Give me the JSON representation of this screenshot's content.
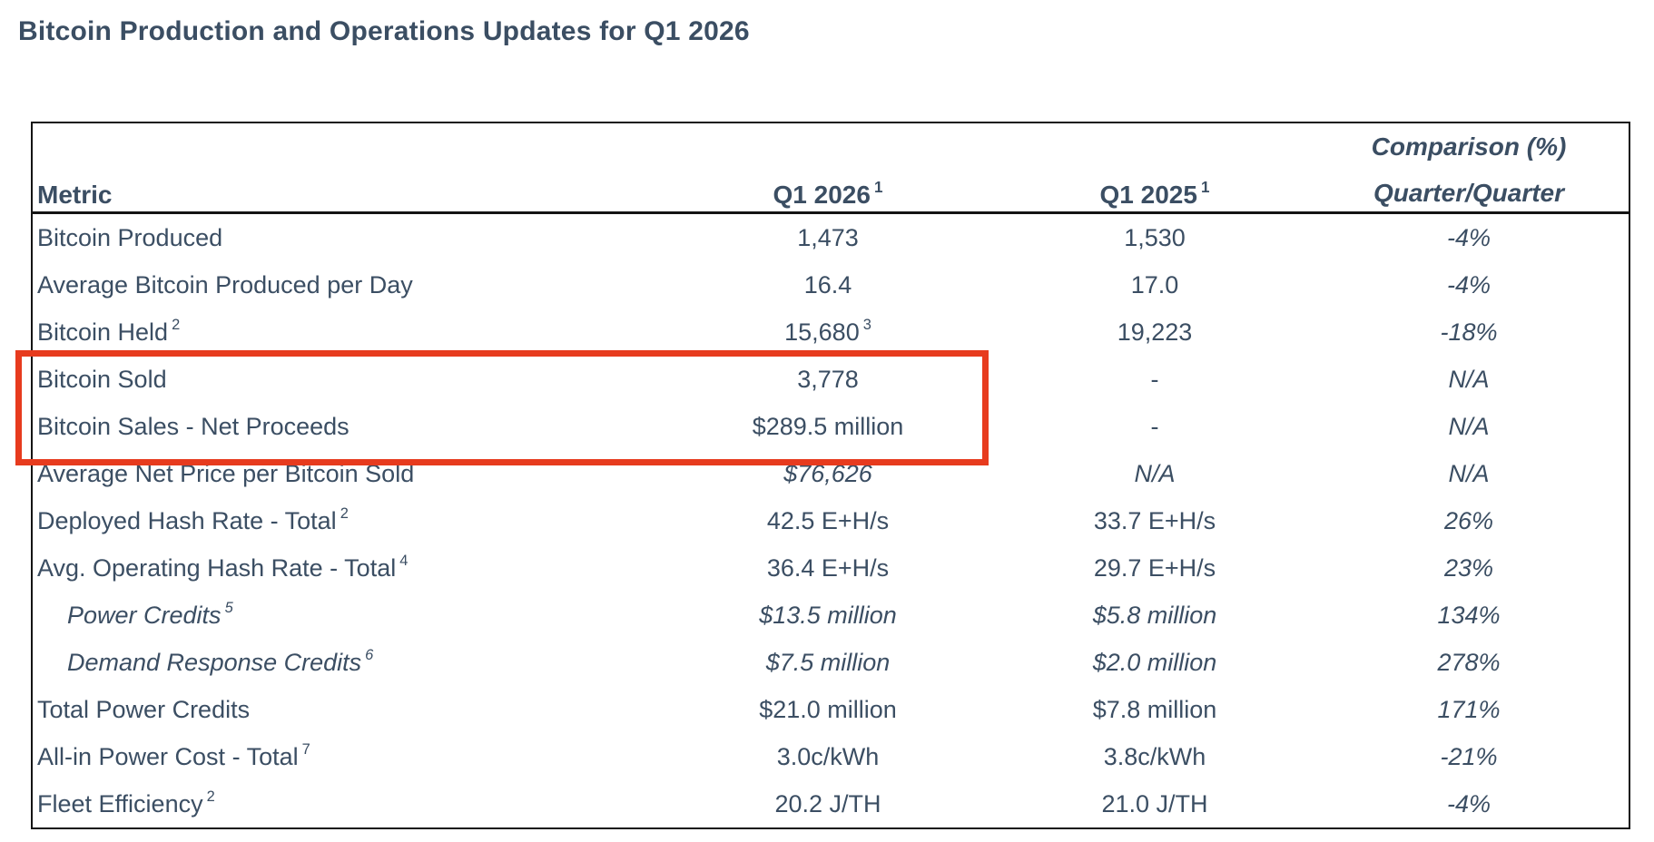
{
  "page_title": "Bitcoin Production and Operations Updates for Q1 2026",
  "colors": {
    "text": "#3b4e63",
    "table_border": "#141414",
    "highlight_border": "#e73b1e",
    "background": "#ffffff"
  },
  "table": {
    "headers": {
      "metric": "Metric",
      "q1_2026": "Q1 2026",
      "q1_2026_sup": "1",
      "q1_2025": "Q1 2025",
      "q1_2025_sup": "1",
      "comparison_line1": "Comparison (%)",
      "comparison_line2": "Quarter/Quarter"
    },
    "rows": [
      {
        "metric": "Bitcoin Produced",
        "q1_2026": "1,473",
        "q1_2025": "1,530",
        "comparison": "-4%"
      },
      {
        "metric": "Average Bitcoin Produced per Day",
        "q1_2026": "16.4",
        "q1_2025": "17.0",
        "comparison": "-4%"
      },
      {
        "metric": "Bitcoin Held",
        "metric_sup": "2",
        "q1_2026": "15,680",
        "q1_2026_sup": "3",
        "q1_2025": "19,223",
        "comparison": "-18%"
      },
      {
        "metric": "Bitcoin Sold",
        "q1_2026": "3,778",
        "q1_2025": "-",
        "comparison": "N/A",
        "highlighted": true
      },
      {
        "metric": "Bitcoin Sales - Net Proceeds",
        "q1_2026": "$289.5 million",
        "q1_2025": "-",
        "comparison": "N/A",
        "highlighted": true
      },
      {
        "metric": "Average Net Price per Bitcoin Sold",
        "q1_2026": "$76,626",
        "q1_2026_italic": true,
        "q1_2025": "N/A",
        "q1_2025_italic": true,
        "comparison": "N/A"
      },
      {
        "metric": "Deployed Hash Rate - Total",
        "metric_sup": "2",
        "q1_2026": "42.5 E+H/s",
        "q1_2025": "33.7 E+H/s",
        "comparison": "26%"
      },
      {
        "metric": "Avg. Operating Hash Rate - Total",
        "metric_sup": "4",
        "q1_2026": "36.4 E+H/s",
        "q1_2025": "29.7 E+H/s",
        "comparison": "23%"
      },
      {
        "metric": "Power Credits",
        "metric_sup": "5",
        "metric_italic": true,
        "indent": true,
        "q1_2026": "$13.5 million",
        "q1_2026_italic": true,
        "q1_2025": "$5.8 million",
        "q1_2025_italic": true,
        "comparison": "134%"
      },
      {
        "metric": "Demand Response Credits",
        "metric_sup": "6",
        "metric_italic": true,
        "indent": true,
        "q1_2026": "$7.5 million",
        "q1_2026_italic": true,
        "q1_2025": "$2.0 million",
        "q1_2025_italic": true,
        "comparison": "278%"
      },
      {
        "metric": "Total Power Credits",
        "q1_2026": "$21.0 million",
        "q1_2025": "$7.8 million",
        "comparison": "171%"
      },
      {
        "metric": "All-in Power Cost - Total",
        "metric_sup": "7",
        "q1_2026": "3.0c/kWh",
        "q1_2025": "3.8c/kWh",
        "comparison": "-21%"
      },
      {
        "metric": "Fleet Efficiency",
        "metric_sup": "2",
        "q1_2026": "20.2 J/TH",
        "q1_2025": "21.0 J/TH",
        "comparison": "-4%"
      }
    ]
  },
  "highlight": {
    "border_color": "#e73b1e"
  }
}
